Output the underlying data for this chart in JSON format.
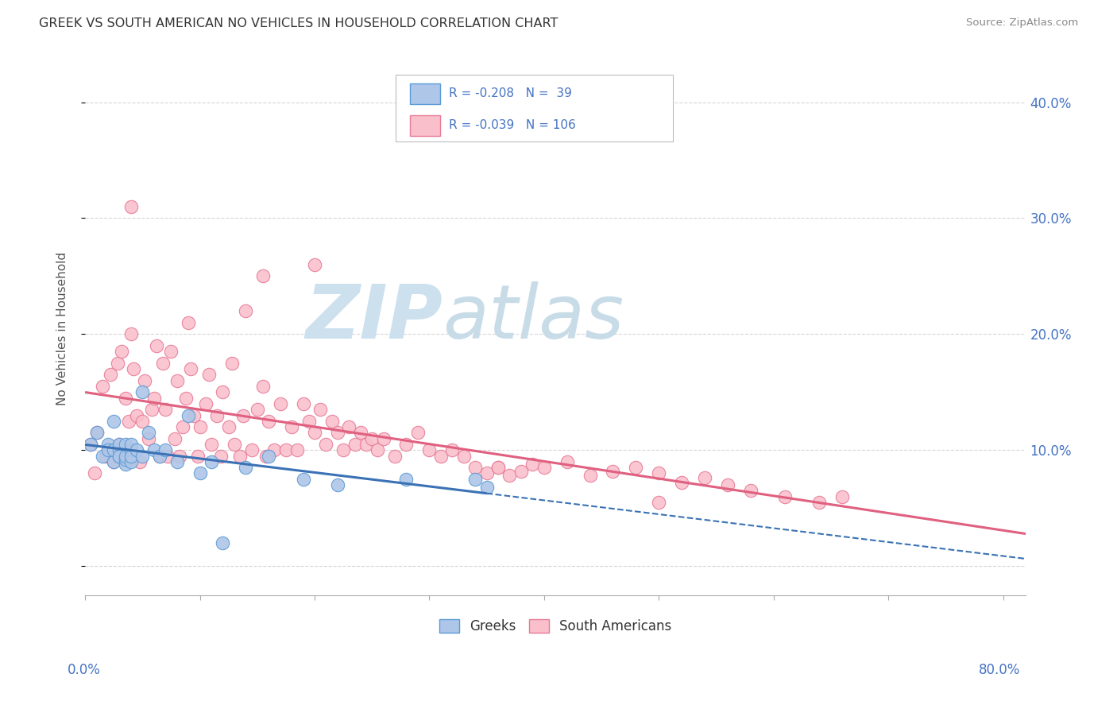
{
  "title": "GREEK VS SOUTH AMERICAN NO VEHICLES IN HOUSEHOLD CORRELATION CHART",
  "source": "Source: ZipAtlas.com",
  "ylabel": "No Vehicles in Household",
  "xlim": [
    0.0,
    0.82
  ],
  "ylim": [
    -0.025,
    0.435
  ],
  "greek_R": -0.208,
  "greek_N": 39,
  "sa_R": -0.039,
  "sa_N": 106,
  "greek_fill_color": "#aec6e8",
  "greek_edge_color": "#5b9bd5",
  "sa_fill_color": "#f9c0cc",
  "sa_edge_color": "#e87a96",
  "greek_line_color": "#3a72b5",
  "sa_line_color": "#e06080",
  "background_color": "#ffffff",
  "grid_color": "#cccccc",
  "legend_text_color": "#4472c4",
  "title_color": "#333333",
  "source_color": "#888888",
  "ylabel_color": "#555555",
  "watermark_zip_color": "#cce0ee",
  "watermark_atlas_color": "#c8dce8",
  "greek_scatter_x": [
    0.005,
    0.01,
    0.015,
    0.02,
    0.02,
    0.025,
    0.025,
    0.025,
    0.03,
    0.03,
    0.03,
    0.03,
    0.035,
    0.035,
    0.035,
    0.035,
    0.04,
    0.04,
    0.04,
    0.04,
    0.045,
    0.05,
    0.05,
    0.055,
    0.06,
    0.065,
    0.07,
    0.08,
    0.09,
    0.1,
    0.11,
    0.12,
    0.14,
    0.16,
    0.19,
    0.22,
    0.28,
    0.34,
    0.35
  ],
  "greek_scatter_y": [
    0.105,
    0.115,
    0.095,
    0.105,
    0.1,
    0.09,
    0.1,
    0.125,
    0.095,
    0.1,
    0.105,
    0.095,
    0.088,
    0.092,
    0.095,
    0.105,
    0.1,
    0.09,
    0.095,
    0.105,
    0.1,
    0.15,
    0.095,
    0.115,
    0.1,
    0.095,
    0.1,
    0.09,
    0.13,
    0.08,
    0.09,
    0.02,
    0.085,
    0.095,
    0.075,
    0.07,
    0.075,
    0.075,
    0.068
  ],
  "sa_scatter_x": [
    0.005,
    0.008,
    0.01,
    0.015,
    0.018,
    0.02,
    0.022,
    0.025,
    0.028,
    0.03,
    0.032,
    0.035,
    0.038,
    0.04,
    0.042,
    0.045,
    0.048,
    0.05,
    0.052,
    0.055,
    0.058,
    0.06,
    0.062,
    0.065,
    0.068,
    0.07,
    0.072,
    0.075,
    0.078,
    0.08,
    0.082,
    0.085,
    0.088,
    0.09,
    0.092,
    0.095,
    0.098,
    0.1,
    0.105,
    0.108,
    0.11,
    0.115,
    0.118,
    0.12,
    0.125,
    0.128,
    0.13,
    0.135,
    0.138,
    0.14,
    0.145,
    0.15,
    0.155,
    0.158,
    0.16,
    0.165,
    0.17,
    0.175,
    0.18,
    0.185,
    0.19,
    0.195,
    0.2,
    0.205,
    0.21,
    0.215,
    0.22,
    0.225,
    0.23,
    0.235,
    0.24,
    0.245,
    0.25,
    0.255,
    0.26,
    0.27,
    0.28,
    0.29,
    0.3,
    0.31,
    0.32,
    0.33,
    0.34,
    0.35,
    0.36,
    0.37,
    0.38,
    0.39,
    0.4,
    0.42,
    0.44,
    0.46,
    0.48,
    0.5,
    0.52,
    0.54,
    0.56,
    0.58,
    0.61,
    0.64,
    0.66,
    0.155,
    0.2,
    0.36,
    0.5,
    0.04
  ],
  "sa_scatter_y": [
    0.105,
    0.08,
    0.115,
    0.155,
    0.095,
    0.1,
    0.165,
    0.09,
    0.175,
    0.105,
    0.185,
    0.145,
    0.125,
    0.2,
    0.17,
    0.13,
    0.09,
    0.125,
    0.16,
    0.11,
    0.135,
    0.145,
    0.19,
    0.095,
    0.175,
    0.135,
    0.095,
    0.185,
    0.11,
    0.16,
    0.095,
    0.12,
    0.145,
    0.21,
    0.17,
    0.13,
    0.095,
    0.12,
    0.14,
    0.165,
    0.105,
    0.13,
    0.095,
    0.15,
    0.12,
    0.175,
    0.105,
    0.095,
    0.13,
    0.22,
    0.1,
    0.135,
    0.155,
    0.095,
    0.125,
    0.1,
    0.14,
    0.1,
    0.12,
    0.1,
    0.14,
    0.125,
    0.115,
    0.135,
    0.105,
    0.125,
    0.115,
    0.1,
    0.12,
    0.105,
    0.115,
    0.105,
    0.11,
    0.1,
    0.11,
    0.095,
    0.105,
    0.115,
    0.1,
    0.095,
    0.1,
    0.095,
    0.085,
    0.08,
    0.085,
    0.078,
    0.082,
    0.088,
    0.085,
    0.09,
    0.078,
    0.082,
    0.085,
    0.08,
    0.072,
    0.076,
    0.07,
    0.065,
    0.06,
    0.055,
    0.06,
    0.25,
    0.26,
    0.085,
    0.055,
    0.31
  ],
  "greek_line_x_solid_end": 0.35,
  "greek_line_x_dash_end": 0.82,
  "sa_line_x_start": 0.0,
  "sa_line_x_end": 0.82
}
